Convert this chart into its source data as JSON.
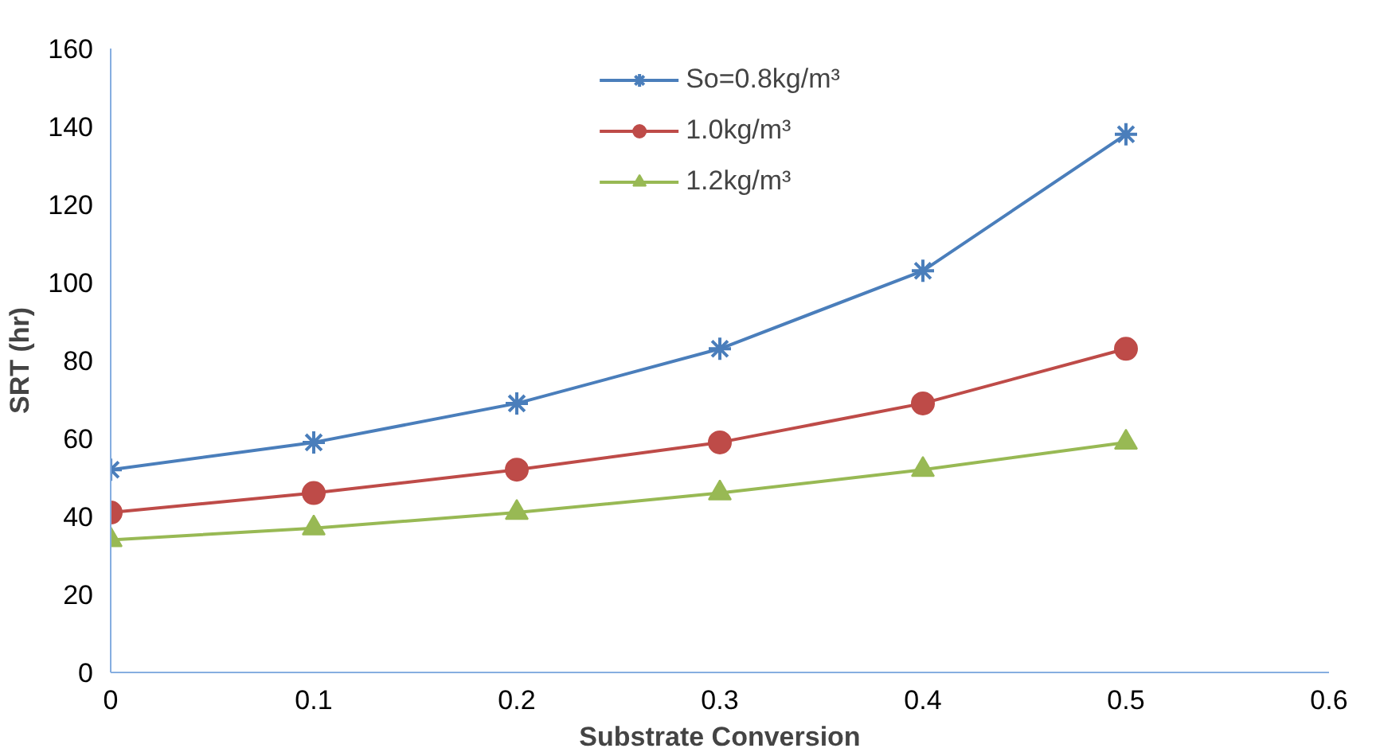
{
  "chart_data": {
    "type": "line",
    "xlabel": "Substrate Conversion",
    "ylabel": "SRT (hr)",
    "x": [
      0,
      0.1,
      0.2,
      0.3,
      0.4,
      0.5
    ],
    "series": [
      {
        "name": "So=0.8kg/m³",
        "color": "#4a7ebb",
        "marker": "cross",
        "values": [
          52,
          59,
          69,
          83,
          103,
          138
        ]
      },
      {
        "name": "1.0kg/m³",
        "color": "#be4b48",
        "marker": "circle",
        "values": [
          41,
          46,
          52,
          59,
          69,
          83
        ]
      },
      {
        "name": "1.2kg/m³",
        "color": "#98b954",
        "marker": "triangle",
        "values": [
          34,
          37,
          41,
          46,
          52,
          59
        ]
      }
    ],
    "xlim": [
      0,
      0.6
    ],
    "xticks": [
      0,
      0.1,
      0.2,
      0.3,
      0.4,
      0.5,
      0.6
    ],
    "ylim": [
      0,
      160
    ],
    "yticks": [
      0,
      20,
      40,
      60,
      80,
      100,
      120,
      140,
      160
    ],
    "grid": false,
    "legend": "top"
  }
}
